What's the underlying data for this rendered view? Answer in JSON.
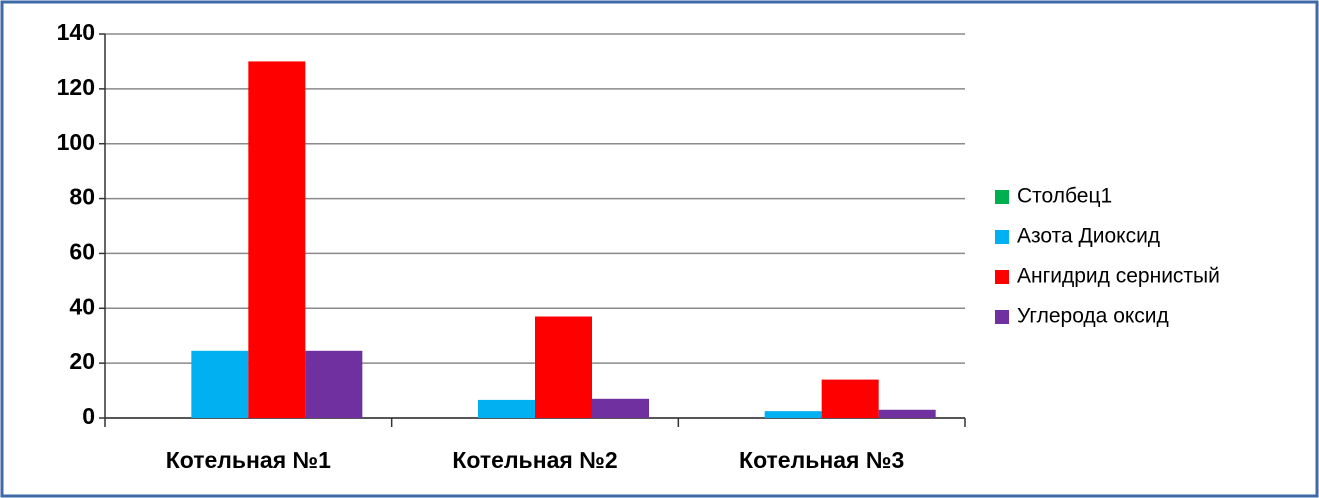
{
  "chart_data": {
    "type": "bar",
    "categories": [
      "Котельная №1",
      "Котельная №2",
      "Котельная №3"
    ],
    "series": [
      {
        "name": "Столбец1",
        "color": "#00b050",
        "values": [
          0,
          0,
          0
        ]
      },
      {
        "name": "Азота Диоксид",
        "color": "#00b0f0",
        "values": [
          24.5,
          6.6,
          2.5
        ]
      },
      {
        "name": "Ангидрид сернистый",
        "color": "#ff0000",
        "values": [
          130,
          37,
          14
        ]
      },
      {
        "name": "Углерода оксид",
        "color": "#7030a0",
        "values": [
          24.5,
          7,
          3
        ]
      }
    ],
    "ylim": [
      0,
      140
    ],
    "yticks": [
      0,
      20,
      40,
      60,
      80,
      100,
      120,
      140
    ],
    "grid": true,
    "legend": "right"
  }
}
